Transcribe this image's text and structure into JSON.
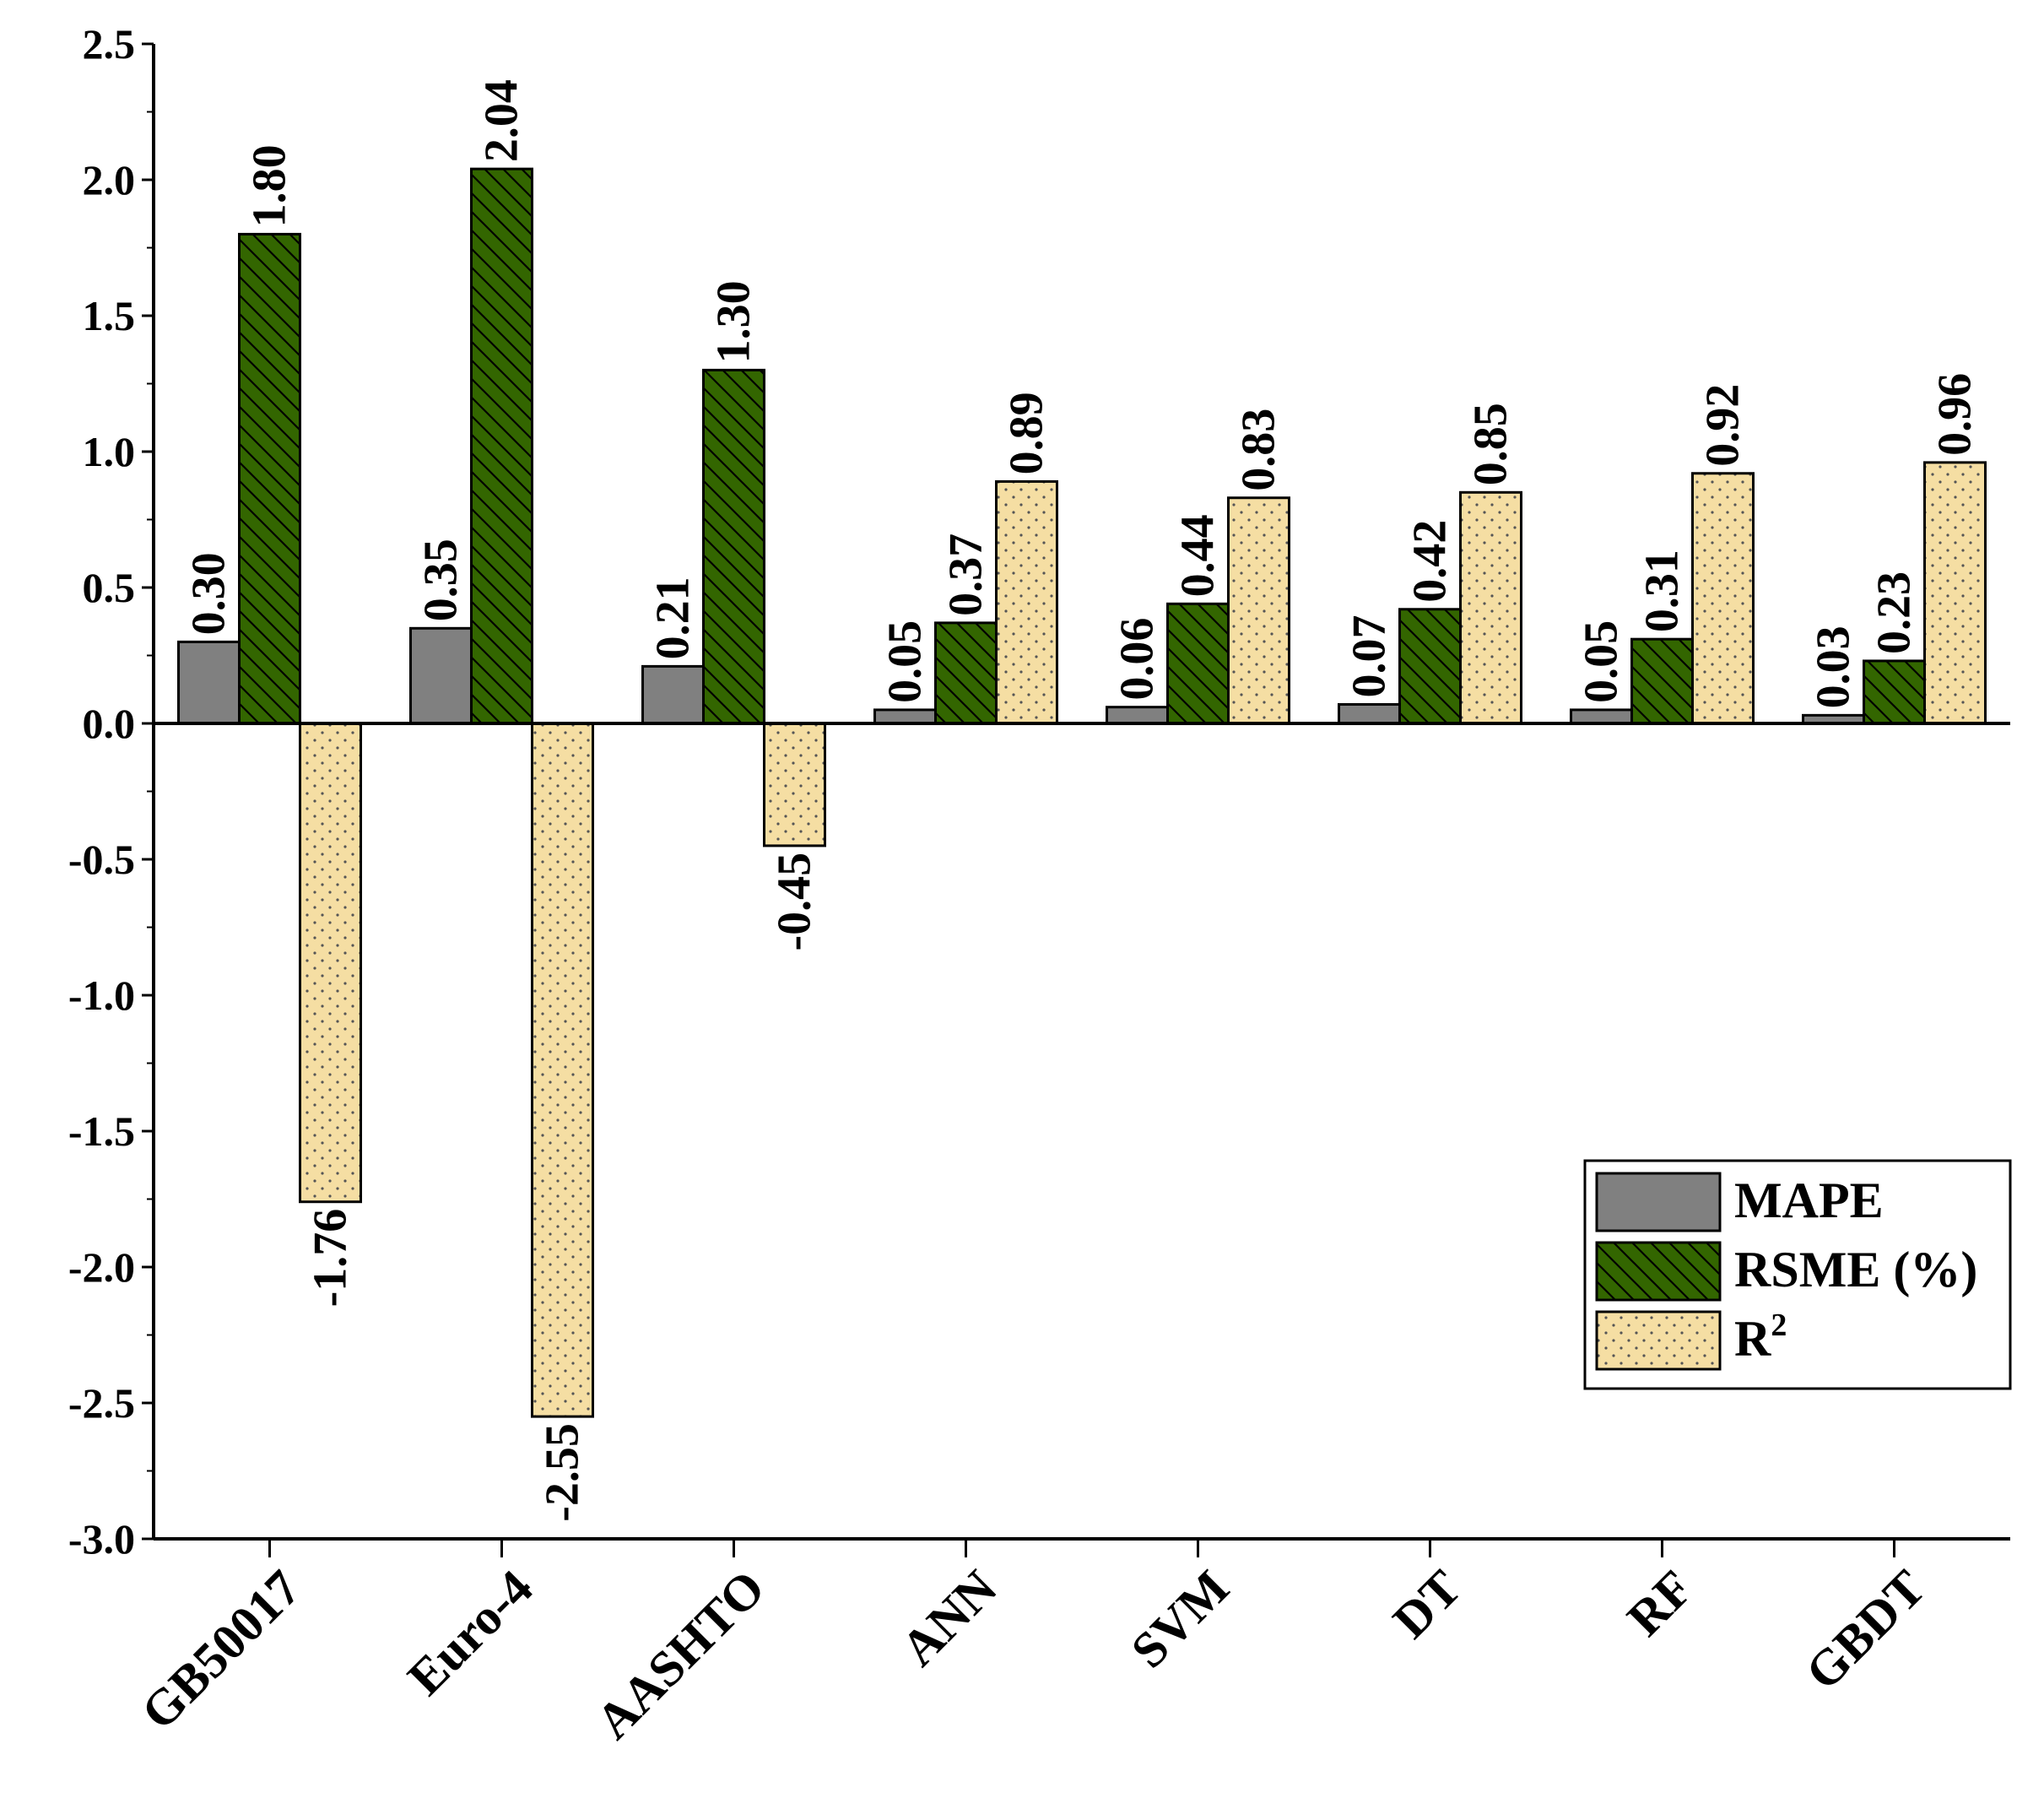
{
  "chart_data": {
    "type": "bar",
    "categories": [
      "GB50017",
      "Euro-4",
      "AASHTO",
      "ANN",
      "SVM",
      "DT",
      "RF",
      "GBDT"
    ],
    "series": [
      {
        "name": "MAPE",
        "color": "#808080",
        "pattern": "solid",
        "values": [
          0.3,
          0.35,
          0.21,
          0.05,
          0.06,
          0.07,
          0.05,
          0.03
        ],
        "labels": [
          "0.30",
          "0.35",
          "0.21",
          "0.05",
          "0.06",
          "0.07",
          "0.05",
          "0.03"
        ]
      },
      {
        "name": "RSME (%)",
        "color": "#336600",
        "pattern": "diagonal-hatch",
        "values": [
          1.8,
          2.04,
          1.3,
          0.37,
          0.44,
          0.42,
          0.31,
          0.23
        ],
        "labels": [
          "1.80",
          "2.04",
          "1.30",
          "0.37",
          "0.44",
          "0.42",
          "0.31",
          "0.23"
        ]
      },
      {
        "name": "R",
        "name_superscript": "2",
        "color": "#f5dea3",
        "pattern": "dots",
        "values": [
          -1.76,
          -2.55,
          -0.45,
          0.89,
          0.83,
          0.85,
          0.92,
          0.96
        ],
        "labels": [
          "-1.76",
          "-2.55",
          "-0.45",
          "0.89",
          "0.83",
          "0.85",
          "0.92",
          "0.96"
        ]
      }
    ],
    "ylim": [
      -3.0,
      2.5
    ],
    "yticks": [
      "-3.0",
      "-2.5",
      "-2.0",
      "-1.5",
      "-1.0",
      "-0.5",
      "0.0",
      "0.5",
      "1.0",
      "1.5",
      "2.0",
      "2.5"
    ],
    "ytick_values": [
      -3.0,
      -2.5,
      -2.0,
      -1.5,
      -1.0,
      -0.5,
      0.0,
      0.5,
      1.0,
      1.5,
      2.0,
      2.5
    ],
    "legend_position": "bottom-right",
    "title": "",
    "xlabel": "",
    "ylabel": ""
  }
}
